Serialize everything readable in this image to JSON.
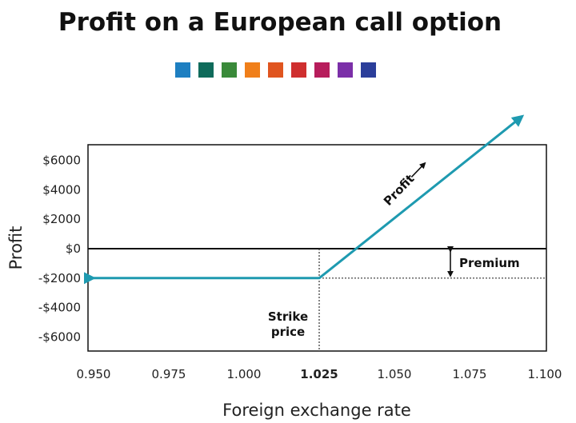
{
  "chart_data": {
    "type": "line",
    "title": "Profit on a European call option",
    "xlabel": "Foreign exchange rate",
    "ylabel": "Profit",
    "xlim": [
      0.95,
      1.1
    ],
    "ylim": [
      -7000,
      7000
    ],
    "x_ticks": [
      "0.950",
      "0.975",
      "1.000",
      "1.025",
      "1.050",
      "1.075",
      "1.100"
    ],
    "x_tick_values": [
      0.95,
      0.975,
      1.0,
      1.025,
      1.05,
      1.075,
      1.1
    ],
    "bold_x_tick": "1.025",
    "y_ticks": [
      "$6000",
      "$4000",
      "$2000",
      "$0",
      "-$2000",
      "-$4000",
      "-$6000"
    ],
    "y_tick_values": [
      6000,
      4000,
      2000,
      0,
      -2000,
      -4000,
      -6000
    ],
    "series": [
      {
        "color": "#1e9ab0",
        "x": [
          0.95,
          1.025,
          1.0925
        ],
        "y": [
          -2000,
          -2000,
          9000
        ]
      }
    ],
    "strike": 1.025,
    "premium": -2000,
    "annotations": {
      "profit": "Profit",
      "premium": "Premium",
      "strike_line1": "Strike",
      "strike_line2": "price"
    },
    "grid": false
  },
  "palette": [
    "#1e7fc1",
    "#0f6b5b",
    "#3a8a3a",
    "#f07f1a",
    "#e0551f",
    "#cf2f2f",
    "#b71d5c",
    "#7b2fa8",
    "#2b3e9a"
  ]
}
